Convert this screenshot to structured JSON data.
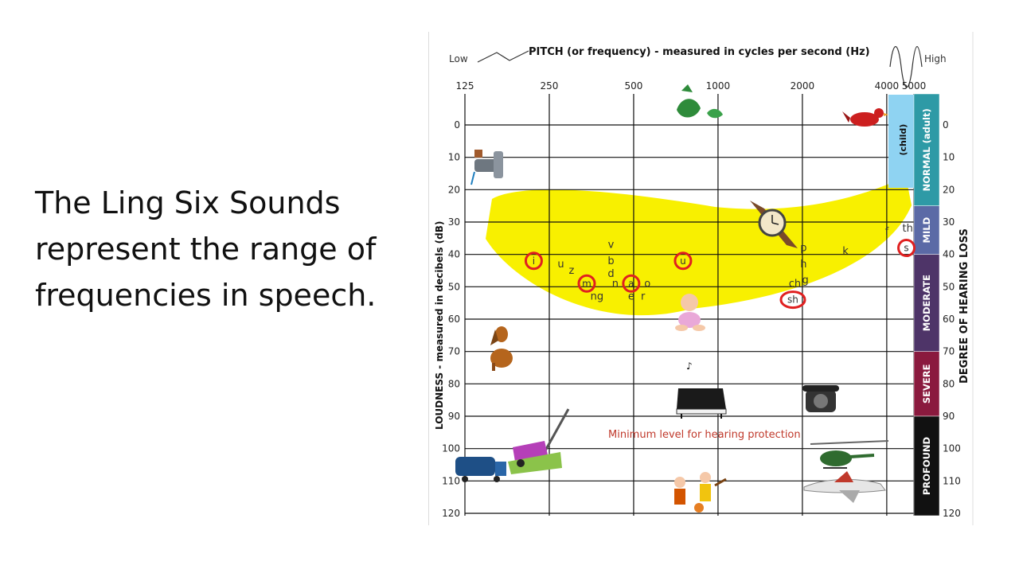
{
  "slide": {
    "text_lines": [
      "The Ling Six Sounds",
      "represent the range of",
      "frequencies in speech."
    ]
  },
  "chart_data": {
    "type": "scatter",
    "title": "PITCH (or frequency) - measured in cycles per second (Hz)",
    "title_low": "Low",
    "title_high": "High",
    "xlabel": "PITCH (or frequency) - measured in cycles per second (Hz)",
    "ylabel": "LOUDNESS - measured in decibels (dB)",
    "right_label": "DEGREE OF HEARING LOSS",
    "x_scale": "log2",
    "x_ticks": [
      125,
      250,
      500,
      1000,
      2000,
      4000,
      5000
    ],
    "x_tick_labels": [
      "125",
      "250",
      "500",
      "1000",
      "2000",
      "4000",
      "5000"
    ],
    "ylim": [
      0,
      120
    ],
    "y_ticks": [
      0,
      10,
      20,
      30,
      40,
      50,
      60,
      70,
      80,
      90,
      100,
      110,
      120
    ],
    "y_tick_labels": [
      "0",
      "10",
      "20",
      "30",
      "40",
      "50",
      "60",
      "70",
      "80",
      "90",
      "100",
      "110",
      "120"
    ],
    "y_inverted": true,
    "grid": true,
    "hearing_loss_bands": [
      {
        "label": "NORMAL (adult)",
        "from": 0,
        "to": 25,
        "color": "#2e9aa6"
      },
      {
        "label": "MILD",
        "from": 25,
        "to": 40,
        "color": "#5b6aa6"
      },
      {
        "label": "MODERATE",
        "from": 40,
        "to": 70,
        "color": "#4e3468"
      },
      {
        "label": "SEVERE",
        "from": 70,
        "to": 90,
        "color": "#8a1a3e"
      },
      {
        "label": "PROFOUND",
        "from": 90,
        "to": 120,
        "color": "#111111"
      }
    ],
    "child_band": {
      "label": "(child)",
      "from": 0,
      "to": 15,
      "color": "#8fd3f2"
    },
    "speech_banana_color": "#f8f000",
    "ling_sounds": [
      {
        "sound": "i",
        "hz": 220,
        "db": 42
      },
      {
        "sound": "m",
        "hz": 340,
        "db": 49
      },
      {
        "sound": "a",
        "hz": 490,
        "db": 49
      },
      {
        "sound": "u",
        "hz": 750,
        "db": 42
      },
      {
        "sound": "sh",
        "hz": 1850,
        "db": 54
      },
      {
        "sound": "s",
        "hz": 4700,
        "db": 38
      }
    ],
    "other_sounds": [
      {
        "sound": "u",
        "hz": 275,
        "db": 43
      },
      {
        "sound": "z",
        "hz": 300,
        "db": 45
      },
      {
        "sound": "v",
        "hz": 415,
        "db": 37
      },
      {
        "sound": "b",
        "hz": 415,
        "db": 42
      },
      {
        "sound": "d",
        "hz": 415,
        "db": 46
      },
      {
        "sound": "n",
        "hz": 430,
        "db": 49
      },
      {
        "sound": "ng",
        "hz": 370,
        "db": 53
      },
      {
        "sound": "e",
        "hz": 490,
        "db": 53
      },
      {
        "sound": "o",
        "hz": 560,
        "db": 49
      },
      {
        "sound": "r",
        "hz": 540,
        "db": 53
      },
      {
        "sound": "p",
        "hz": 2020,
        "db": 38
      },
      {
        "sound": "h",
        "hz": 2020,
        "db": 43
      },
      {
        "sound": "ch",
        "hz": 1880,
        "db": 49
      },
      {
        "sound": "g",
        "hz": 2050,
        "db": 48
      },
      {
        "sound": "k",
        "hz": 2850,
        "db": 39
      },
      {
        "sound": "f",
        "hz": 4000,
        "db": 33
      },
      {
        "sound": "th",
        "hz": 4750,
        "db": 32
      }
    ],
    "annotations": [
      {
        "text": "Minimum level for hearing protection",
        "color": "#c0392b"
      }
    ],
    "icons": [
      "leaves-icon",
      "bird-icon",
      "faucet-icon",
      "watch-icon",
      "dog-icon",
      "baby-icon",
      "piano-icon",
      "telephone-icon",
      "lawnmower-icon",
      "truck-icon",
      "helicopter-icon",
      "airplane-icon",
      "band-icon"
    ]
  }
}
